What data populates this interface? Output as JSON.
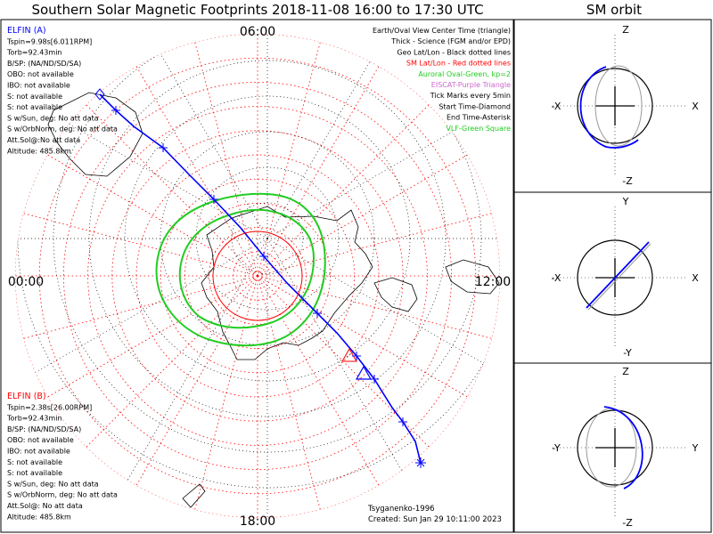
{
  "title": "Southern Solar Magnetic Footprints 2018-11-08 16:00 to 17:30 UTC",
  "orbit_title": "SM orbit",
  "mlt_labels": {
    "top": "06:00",
    "left": "00:00",
    "right": "12:00",
    "bottom": "18:00"
  },
  "elfin_a": {
    "name": "ELFIN (A)",
    "color": "#0000ff",
    "lines": [
      "Tspin=9.98s[6.011RPM]",
      "Torb=92.43min",
      "B/SP: (NA/ND/SD/SA)",
      "OBO: not available",
      "IBO: not available",
      "S: not available",
      "S: not available",
      "S w/Sun, deg: No att data",
      "S w/OrbNorm, deg: No att data",
      "Att.Sol@:No att data",
      "Altitude: 485.8km"
    ]
  },
  "elfin_b": {
    "name": "ELFIN (B)",
    "color": "#ff0000",
    "lines": [
      "Tspin=2.38s[26.00RPM]",
      "Torb=92.43min",
      "B/SP: (NA/ND/SD/SA)",
      "OBO: not available",
      "IBO: not available",
      "S: not available",
      "S: not available",
      "S w/Sun, deg: No att data",
      "S w/OrbNorm, deg: No att data",
      "Att.Sol@: No att data",
      "Altitude: 485.8km"
    ]
  },
  "legend": [
    {
      "text": "Earth/Oval View Center Time (triangle)",
      "color": "#000000"
    },
    {
      "text": "Thick - Science (FGM and/or EPD)",
      "color": "#000000"
    },
    {
      "text": "Geo Lat/Lon - Black dotted lines",
      "color": "#000000"
    },
    {
      "text": "SM Lat/Lon - Red dotted lines",
      "color": "#ff0000"
    },
    {
      "text": "Auroral Oval-Green, kp=2",
      "color": "#22cc22"
    },
    {
      "text": "EISCAT-Purple Triangle",
      "color": "#cc66cc"
    },
    {
      "text": "Tick Marks every 5min",
      "color": "#000000"
    },
    {
      "text": "Start Time-Diamond",
      "color": "#000000"
    },
    {
      "text": "End Time-Asterisk",
      "color": "#000000"
    },
    {
      "text": "VLF-Green Square",
      "color": "#22cc22"
    }
  ],
  "footer": {
    "model": "Tsyganenko-1996",
    "created": "Created: Sun Jan 29 10:11:00 2023"
  },
  "orbit_panels": [
    {
      "top": "Z",
      "bottom": "-Z",
      "left": "-X",
      "right": "X"
    },
    {
      "top": "Y",
      "bottom": "-Y",
      "left": "-X",
      "right": "X"
    },
    {
      "top": "Z",
      "bottom": "-Z",
      "left": "-Y",
      "right": "Y"
    }
  ],
  "chart_data": {
    "type": "polar-map",
    "title": "Southern Solar Magnetic Footprints 2018-11-08 16:00 to 17:30 UTC",
    "projection": "south polar stereographic, SM coordinates",
    "series": [
      {
        "name": "ELFIN (A)",
        "color": "#0000ff",
        "track": [
          [
            -48,
            -123
          ],
          [
            -56,
            -129
          ],
          [
            -65,
            -138
          ],
          [
            -71,
            -150
          ],
          [
            -78,
            -175
          ],
          [
            -79,
            148
          ],
          [
            -73,
            122
          ],
          [
            -65,
            110
          ],
          [
            -58,
            105
          ],
          [
            -50,
            101
          ],
          [
            -45,
            100
          ]
        ]
      }
    ],
    "auroral_oval": {
      "kp": 2,
      "color": "#22cc22"
    },
    "sm_grid_color": "#ff0000",
    "geo_grid_color": "#000000"
  }
}
